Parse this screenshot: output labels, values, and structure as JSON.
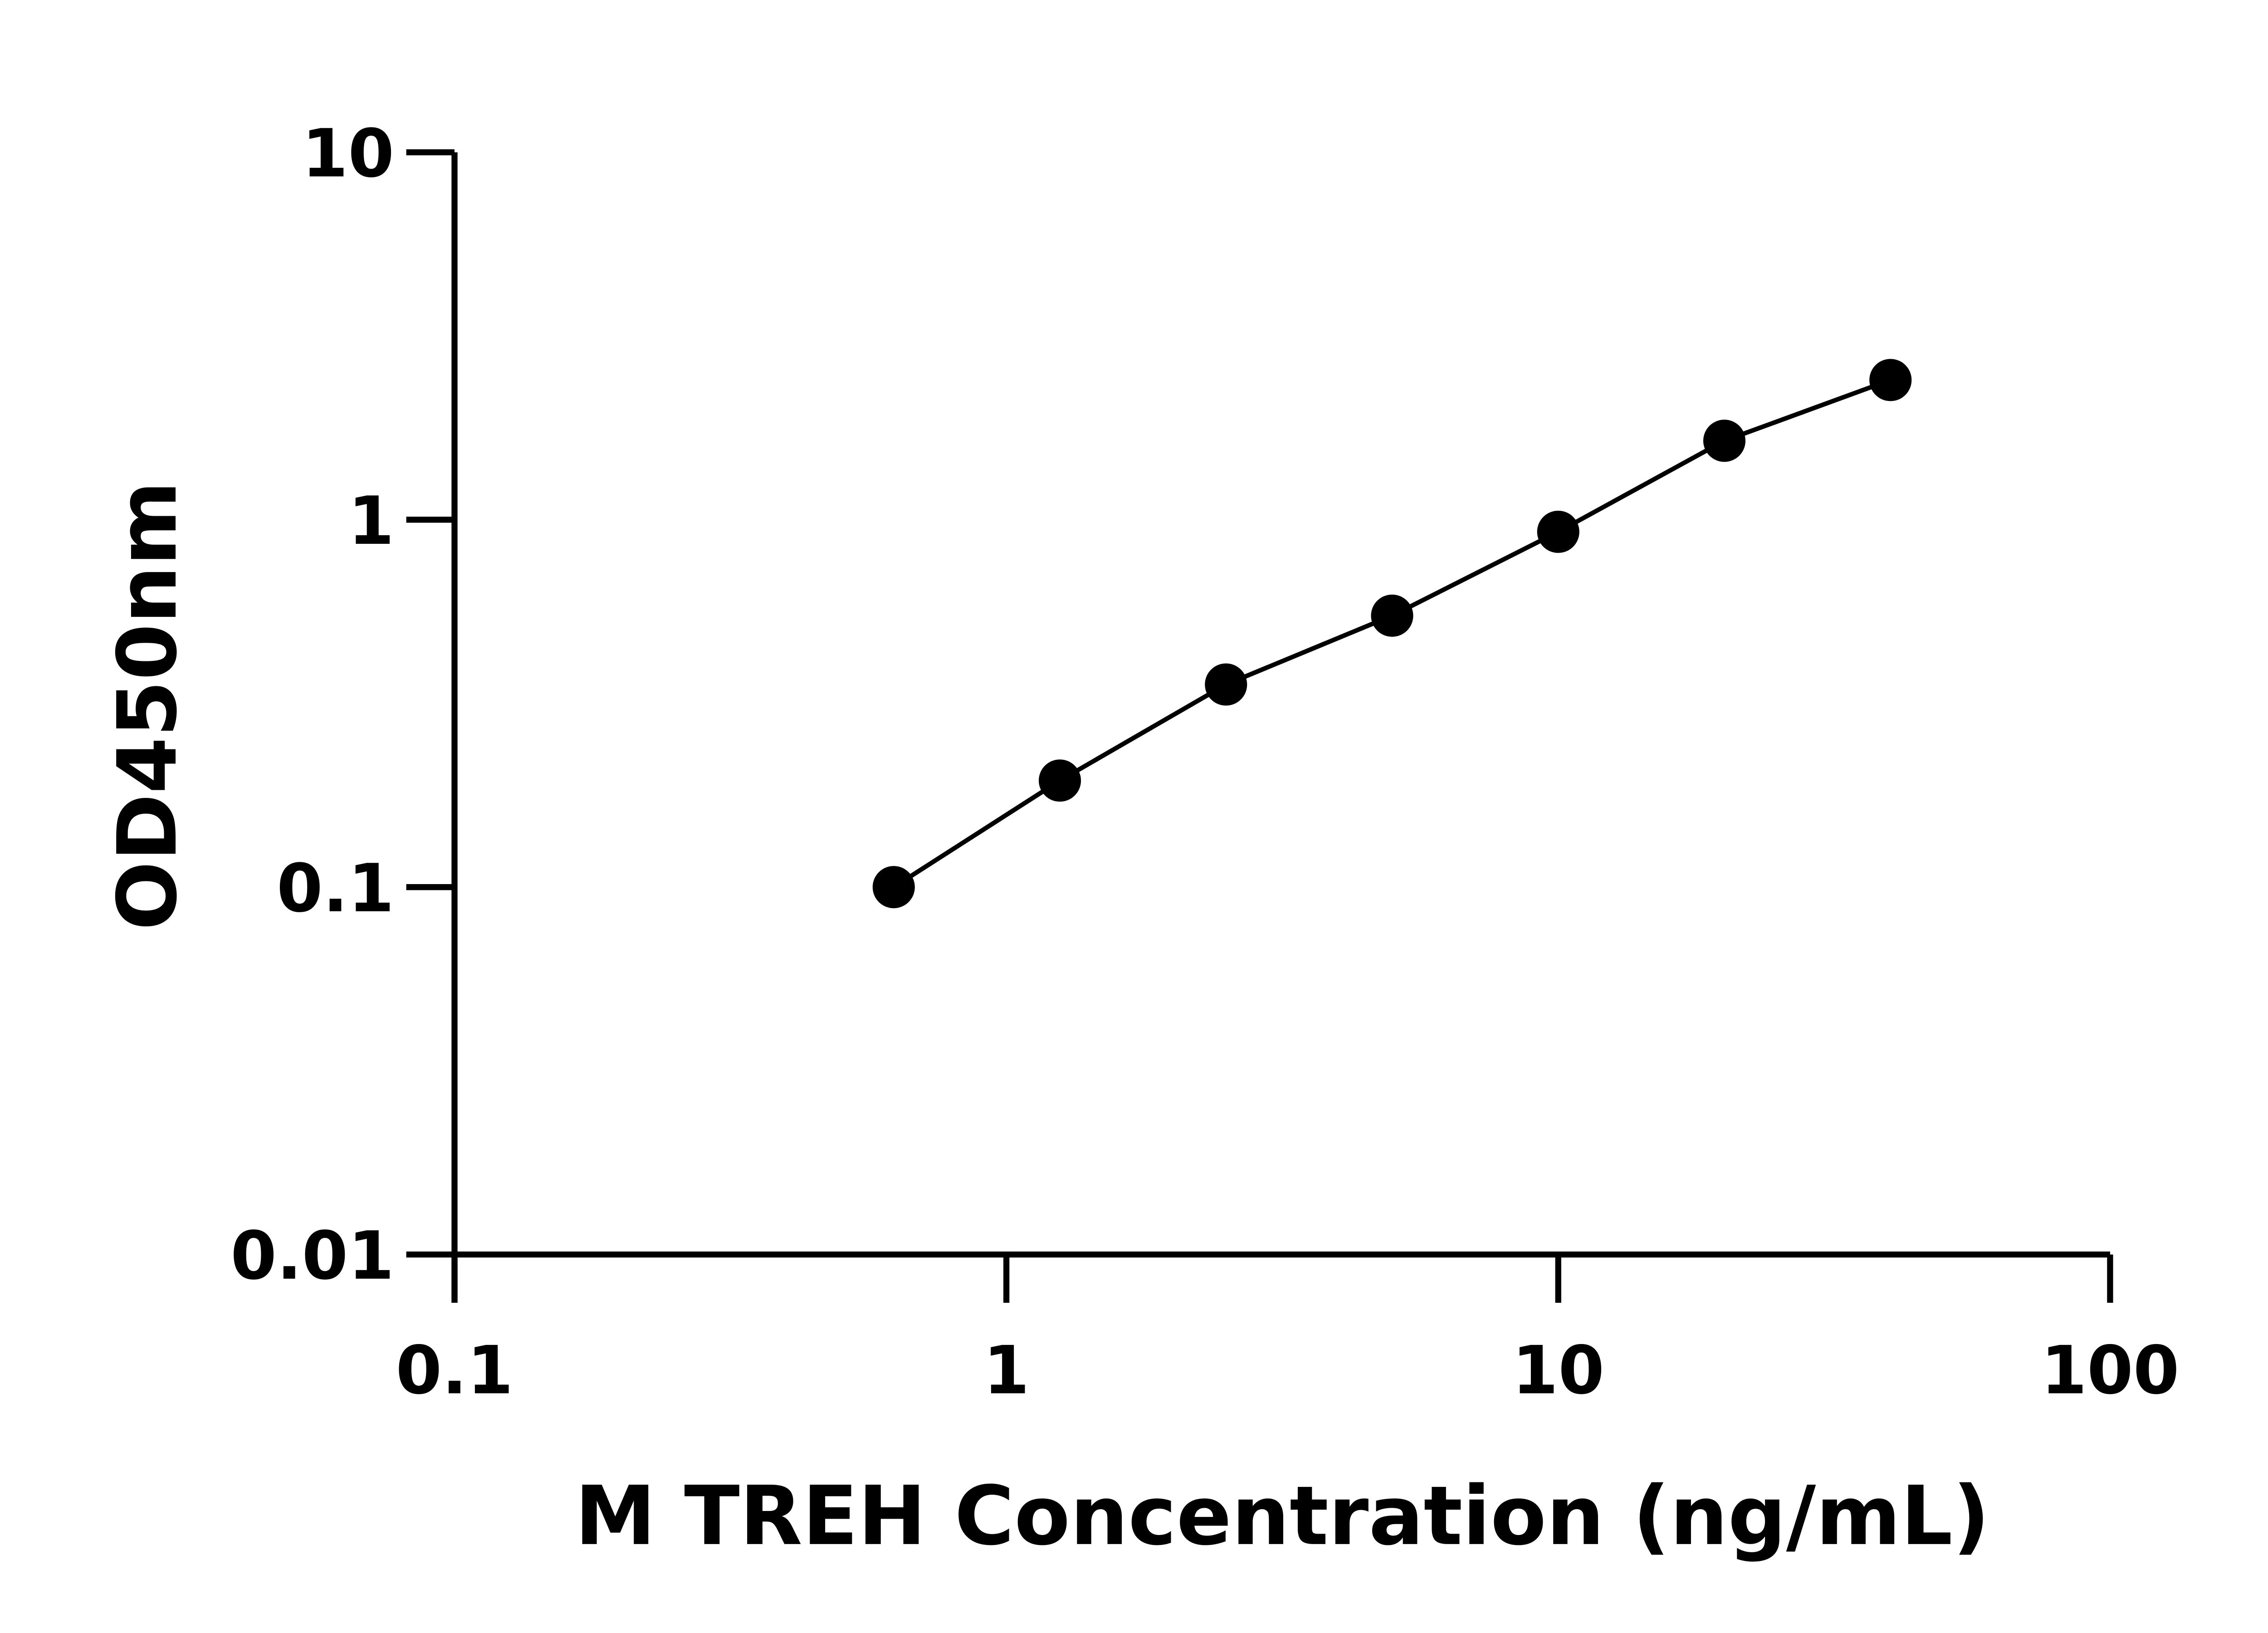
{
  "chart_data": {
    "type": "line",
    "title": "",
    "xlabel": "M TREH Concentration (ng/mL)",
    "ylabel": "OD450nm",
    "x_scale": "log",
    "y_scale": "log",
    "xlim": [
      0.1,
      100
    ],
    "ylim": [
      0.01,
      10
    ],
    "x_ticks": [
      "0.1",
      "1",
      "10",
      "100"
    ],
    "y_ticks": [
      "0.01",
      "0.1",
      "1",
      "10"
    ],
    "grid": false,
    "series": [
      {
        "x": [
          0.625,
          1.25,
          2.5,
          5,
          10,
          20,
          40
        ],
        "y": [
          0.1,
          0.195,
          0.356,
          0.548,
          0.927,
          1.64,
          2.4
        ],
        "color": "#000000",
        "marker": "circle"
      }
    ]
  }
}
